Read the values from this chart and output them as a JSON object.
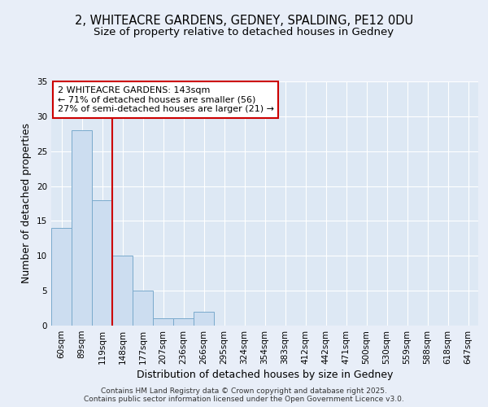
{
  "title_line1": "2, WHITEACRE GARDENS, GEDNEY, SPALDING, PE12 0DU",
  "title_line2": "Size of property relative to detached houses in Gedney",
  "xlabel": "Distribution of detached houses by size in Gedney",
  "ylabel": "Number of detached properties",
  "bar_values": [
    14,
    28,
    18,
    10,
    5,
    1,
    1,
    2,
    0,
    0,
    0,
    0,
    0,
    0,
    0,
    0,
    0,
    0,
    0,
    0,
    0
  ],
  "categories": [
    "60sqm",
    "89sqm",
    "119sqm",
    "148sqm",
    "177sqm",
    "207sqm",
    "236sqm",
    "266sqm",
    "295sqm",
    "324sqm",
    "354sqm",
    "383sqm",
    "412sqm",
    "442sqm",
    "471sqm",
    "500sqm",
    "530sqm",
    "559sqm",
    "588sqm",
    "618sqm",
    "647sqm"
  ],
  "bar_color": "#ccddf0",
  "bar_edge_color": "#7aaacc",
  "fig_bg_color": "#e8eef8",
  "plot_bg_color": "#dde8f4",
  "grid_color": "#ffffff",
  "vline_x": 2.5,
  "vline_color": "#cc0000",
  "annotation_text": "2 WHITEACRE GARDENS: 143sqm\n← 71% of detached houses are smaller (56)\n27% of semi-detached houses are larger (21) →",
  "annotation_box_color": "#cc0000",
  "ylim": [
    0,
    35
  ],
  "yticks": [
    0,
    5,
    10,
    15,
    20,
    25,
    30,
    35
  ],
  "footer_text": "Contains HM Land Registry data © Crown copyright and database right 2025.\nContains public sector information licensed under the Open Government Licence v3.0.",
  "title_fontsize": 10.5,
  "subtitle_fontsize": 9.5,
  "axis_label_fontsize": 9,
  "tick_fontsize": 7.5,
  "annotation_fontsize": 8,
  "footer_fontsize": 6.5
}
